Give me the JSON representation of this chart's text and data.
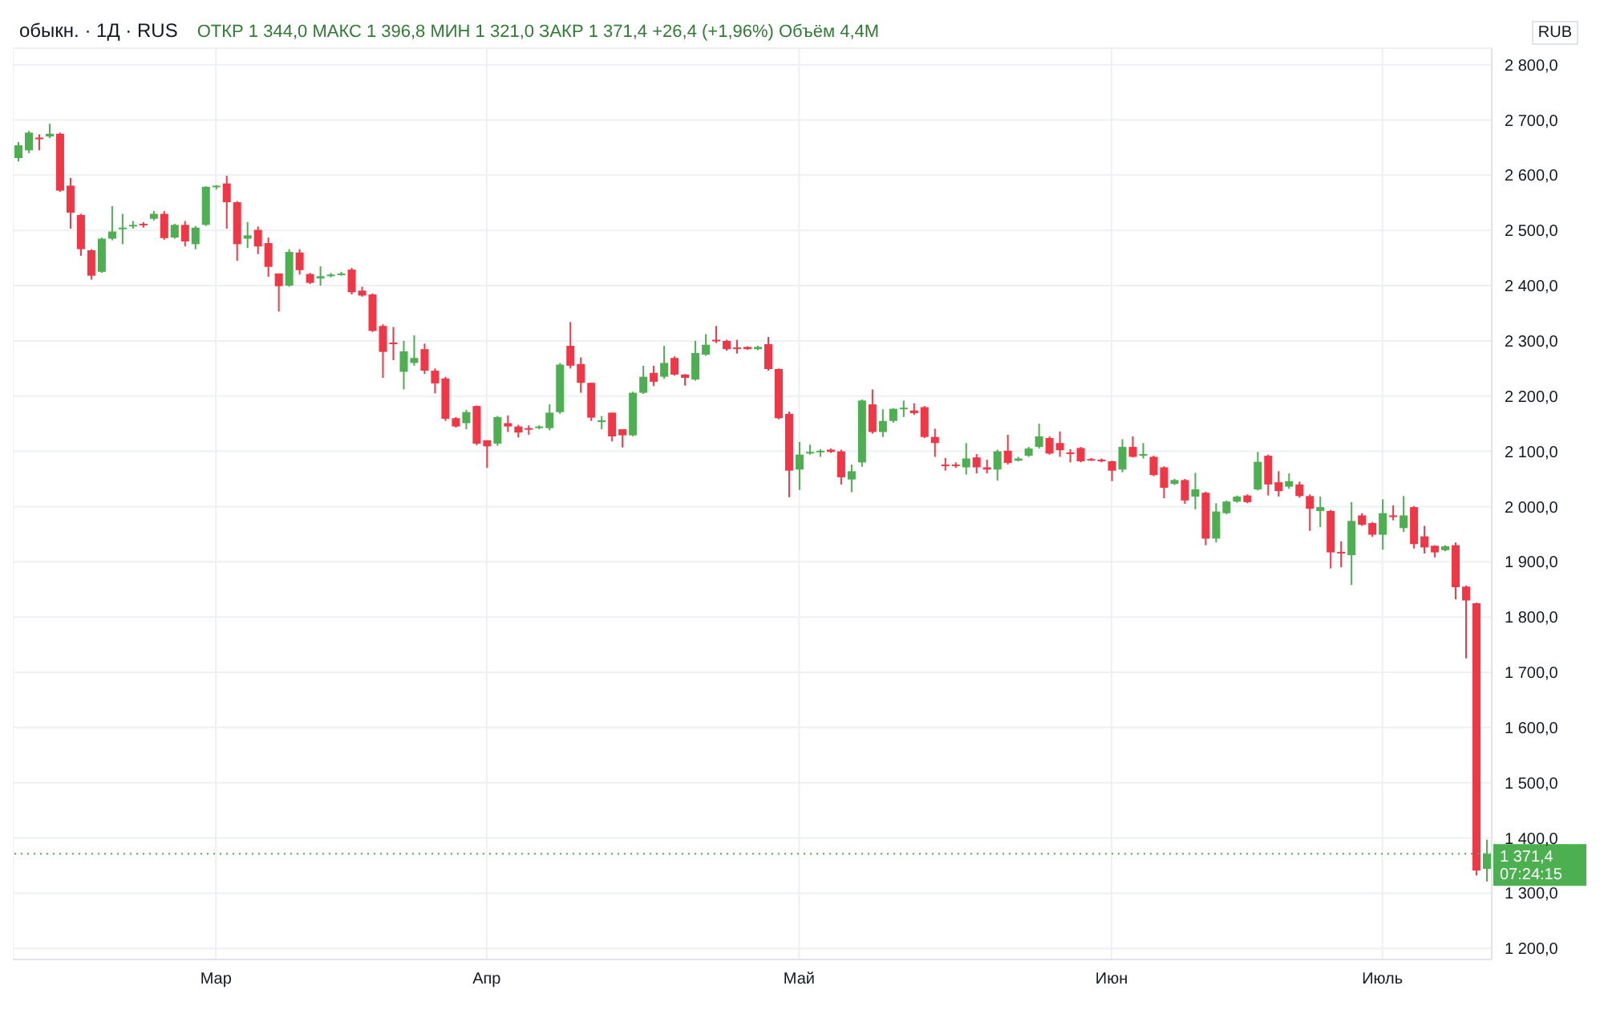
{
  "chart_data": {
    "type": "candlestick",
    "title": "обыкн. · 1Д · RUS",
    "subtitle": "ОТКР 1 344,0  МАКС 1 396,8  МИН 1 321,0  ЗАКР 1 371,4  +26,4 (+1,96%)  Объём 4,4M",
    "annotations": [
      "RUB",
      "07:24:15"
    ],
    "categories": [
      null,
      null,
      null,
      null,
      null,
      null,
      null,
      null,
      null,
      null,
      null,
      null,
      null,
      null,
      null,
      null,
      null,
      null,
      null,
      "Мар",
      null,
      null,
      null,
      null,
      null,
      null,
      null,
      null,
      null,
      null,
      null,
      null,
      null,
      null,
      null,
      null,
      null,
      null,
      null,
      null,
      null,
      null,
      null,
      null,
      null,
      "Апр",
      null,
      null,
      null,
      null,
      null,
      null,
      null,
      null,
      null,
      null,
      null,
      null,
      null,
      null,
      null,
      null,
      null,
      null,
      null,
      null,
      null,
      null,
      null,
      null,
      null,
      null,
      null,
      null,
      null,
      "Май",
      null,
      null,
      null,
      null,
      null,
      null,
      null,
      null,
      null,
      null,
      null,
      null,
      null,
      null,
      null,
      null,
      null,
      null,
      null,
      null,
      null,
      null,
      null,
      null,
      null,
      null,
      null,
      null,
      null,
      "Июн",
      null,
      null,
      null,
      null,
      null,
      null,
      null,
      null,
      null,
      null,
      null,
      null,
      null,
      null,
      null,
      null,
      null,
      null,
      null,
      null,
      null,
      null,
      null,
      null,
      null,
      "Июль",
      null,
      null,
      null,
      null,
      null,
      null,
      null,
      null,
      null,
      null
    ],
    "ohlc": [
      [
        2631,
        2660,
        2625,
        2654
      ],
      [
        2645,
        2680,
        2640,
        2677
      ],
      [
        2668,
        2674,
        2645,
        2665
      ],
      [
        2670,
        2693,
        2667,
        2675
      ],
      [
        2675,
        2677,
        2570,
        2572
      ],
      [
        2581,
        2595,
        2503,
        2532
      ],
      [
        2528,
        2530,
        2454,
        2466
      ],
      [
        2464,
        2466,
        2411,
        2418
      ],
      [
        2425,
        2487,
        2423,
        2485
      ],
      [
        2485,
        2544,
        2482,
        2498
      ],
      [
        2503,
        2530,
        2475,
        2505
      ],
      [
        2508,
        2517,
        2503,
        2510
      ],
      [
        2512,
        2515,
        2505,
        2511
      ],
      [
        2521,
        2535,
        2518,
        2530
      ],
      [
        2530,
        2535,
        2483,
        2486
      ],
      [
        2487,
        2512,
        2485,
        2510
      ],
      [
        2510,
        2517,
        2471,
        2480
      ],
      [
        2475,
        2508,
        2466,
        2505
      ],
      [
        2510,
        2580,
        2508,
        2579
      ],
      [
        2580,
        2582,
        2574,
        2581
      ],
      [
        2585,
        2599,
        2503,
        2551
      ],
      [
        2551,
        2553,
        2445,
        2475
      ],
      [
        2485,
        2515,
        2468,
        2491
      ],
      [
        2501,
        2507,
        2457,
        2471
      ],
      [
        2477,
        2487,
        2416,
        2434
      ],
      [
        2422,
        2422,
        2353,
        2399
      ],
      [
        2400,
        2466,
        2398,
        2461
      ],
      [
        2460,
        2466,
        2420,
        2428
      ],
      [
        2421,
        2423,
        2403,
        2405
      ],
      [
        2413,
        2435,
        2400,
        2417
      ],
      [
        2418,
        2423,
        2415,
        2420
      ],
      [
        2420,
        2425,
        2418,
        2422
      ],
      [
        2429,
        2432,
        2384,
        2388
      ],
      [
        2391,
        2398,
        2380,
        2382
      ],
      [
        2384,
        2386,
        2316,
        2318
      ],
      [
        2327,
        2330,
        2233,
        2280
      ],
      [
        2297,
        2325,
        2265,
        2294
      ],
      [
        2244,
        2300,
        2212,
        2281
      ],
      [
        2260,
        2310,
        2255,
        2269
      ],
      [
        2285,
        2295,
        2240,
        2246
      ],
      [
        2246,
        2250,
        2205,
        2223
      ],
      [
        2232,
        2235,
        2155,
        2159
      ],
      [
        2160,
        2162,
        2143,
        2145
      ],
      [
        2151,
        2175,
        2140,
        2171
      ],
      [
        2182,
        2183,
        2111,
        2114
      ],
      [
        2120,
        2120,
        2070,
        2109
      ],
      [
        2114,
        2164,
        2110,
        2162
      ],
      [
        2151,
        2165,
        2135,
        2145
      ],
      [
        2145,
        2148,
        2125,
        2134
      ],
      [
        2142,
        2147,
        2130,
        2141
      ],
      [
        2143,
        2147,
        2140,
        2145
      ],
      [
        2142,
        2185,
        2138,
        2170
      ],
      [
        2171,
        2260,
        2168,
        2257
      ],
      [
        2291,
        2334,
        2250,
        2255
      ],
      [
        2258,
        2270,
        2206,
        2224
      ],
      [
        2224,
        2224,
        2155,
        2161
      ],
      [
        2153,
        2164,
        2140,
        2156
      ],
      [
        2170,
        2170,
        2118,
        2127
      ],
      [
        2140,
        2140,
        2107,
        2129
      ],
      [
        2129,
        2208,
        2127,
        2206
      ],
      [
        2206,
        2255,
        2204,
        2235
      ],
      [
        2242,
        2255,
        2218,
        2226
      ],
      [
        2235,
        2291,
        2231,
        2260
      ],
      [
        2269,
        2272,
        2237,
        2239
      ],
      [
        2239,
        2240,
        2219,
        2233
      ],
      [
        2230,
        2300,
        2228,
        2278
      ],
      [
        2275,
        2312,
        2273,
        2293
      ],
      [
        2302,
        2327,
        2296,
        2300
      ],
      [
        2300,
        2302,
        2282,
        2285
      ],
      [
        2288,
        2302,
        2277,
        2286
      ],
      [
        2289,
        2290,
        2284,
        2285
      ],
      [
        2285,
        2291,
        2283,
        2289
      ],
      [
        2294,
        2307,
        2246,
        2249
      ],
      [
        2249,
        2250,
        2158,
        2160
      ],
      [
        2168,
        2172,
        2017,
        2065
      ],
      [
        2067,
        2117,
        2030,
        2094
      ],
      [
        2097,
        2112,
        2094,
        2099
      ],
      [
        2100,
        2104,
        2090,
        2101
      ],
      [
        2103,
        2105,
        2097,
        2099
      ],
      [
        2100,
        2103,
        2040,
        2053
      ],
      [
        2049,
        2076,
        2026,
        2064
      ],
      [
        2080,
        2194,
        2072,
        2192
      ],
      [
        2185,
        2212,
        2132,
        2135
      ],
      [
        2135,
        2176,
        2126,
        2155
      ],
      [
        2155,
        2178,
        2152,
        2177
      ],
      [
        2178,
        2192,
        2162,
        2179
      ],
      [
        2174,
        2187,
        2166,
        2169
      ],
      [
        2180,
        2182,
        2124,
        2126
      ],
      [
        2126,
        2141,
        2090,
        2115
      ],
      [
        2076,
        2088,
        2065,
        2075
      ],
      [
        2076,
        2080,
        2070,
        2075
      ],
      [
        2071,
        2115,
        2058,
        2087
      ],
      [
        2089,
        2095,
        2060,
        2071
      ],
      [
        2071,
        2085,
        2060,
        2067
      ],
      [
        2067,
        2103,
        2047,
        2100
      ],
      [
        2101,
        2130,
        2076,
        2079
      ],
      [
        2083,
        2090,
        2082,
        2087
      ],
      [
        2092,
        2108,
        2090,
        2105
      ],
      [
        2108,
        2150,
        2105,
        2127
      ],
      [
        2124,
        2127,
        2094,
        2096
      ],
      [
        2115,
        2136,
        2090,
        2102
      ],
      [
        2098,
        2104,
        2080,
        2097
      ],
      [
        2106,
        2108,
        2080,
        2082
      ],
      [
        2086,
        2088,
        2083,
        2085
      ],
      [
        2085,
        2087,
        2080,
        2082
      ],
      [
        2082,
        2083,
        2046,
        2065
      ],
      [
        2067,
        2122,
        2062,
        2108
      ],
      [
        2108,
        2127,
        2089,
        2090
      ],
      [
        2092,
        2115,
        2087,
        2095
      ],
      [
        2090,
        2092,
        2055,
        2057
      ],
      [
        2071,
        2073,
        2015,
        2034
      ],
      [
        2041,
        2050,
        2039,
        2048
      ],
      [
        2048,
        2050,
        2005,
        2011
      ],
      [
        2018,
        2061,
        1995,
        2031
      ],
      [
        2025,
        2027,
        1930,
        1942
      ],
      [
        1942,
        2006,
        1935,
        1991
      ],
      [
        1988,
        2011,
        1986,
        2009
      ],
      [
        2009,
        2020,
        2007,
        2018
      ],
      [
        2020,
        2022,
        2006,
        2008
      ],
      [
        2031,
        2099,
        2029,
        2081
      ],
      [
        2092,
        2094,
        2020,
        2040
      ],
      [
        2044,
        2064,
        2018,
        2028
      ],
      [
        2036,
        2060,
        2032,
        2046
      ],
      [
        2040,
        2045,
        2016,
        2019
      ],
      [
        2019,
        2022,
        1956,
        1996
      ],
      [
        1992,
        2018,
        1963,
        1999
      ],
      [
        1992,
        1994,
        1888,
        1917
      ],
      [
        1918,
        1937,
        1890,
        1917
      ],
      [
        1912,
        2008,
        1858,
        1974
      ],
      [
        1984,
        1988,
        1965,
        1967
      ],
      [
        1970,
        1972,
        1945,
        1949
      ],
      [
        1949,
        2013,
        1922,
        1988
      ],
      [
        1984,
        2002,
        1975,
        1981
      ],
      [
        1961,
        2019,
        1954,
        1984
      ],
      [
        1999,
        2001,
        1924,
        1932
      ],
      [
        1946,
        1965,
        1915,
        1926
      ],
      [
        1929,
        1930,
        1908,
        1917
      ],
      [
        1921,
        1930,
        1919,
        1928
      ],
      [
        1930,
        1935,
        1832,
        1854
      ],
      [
        1855,
        1857,
        1725,
        1830
      ],
      [
        1825,
        1826,
        1332,
        1341
      ],
      [
        1344,
        1396.8,
        1321,
        1371.4
      ]
    ],
    "colors": [
      "#4caf50",
      "#4caf50",
      "#f23645",
      "#4caf50",
      "#f23645",
      "#f23645",
      "#f23645",
      "#f23645",
      "#4caf50",
      "#4caf50",
      "#4caf50",
      "#4caf50",
      "#f23645",
      "#4caf50",
      "#f23645",
      "#4caf50",
      "#f23645",
      "#4caf50",
      "#4caf50",
      "#4caf50",
      "#f23645",
      "#f23645",
      "#4caf50",
      "#f23645",
      "#f23645",
      "#f23645",
      "#4caf50",
      "#f23645",
      "#f23645",
      "#4caf50",
      "#4caf50",
      "#4caf50",
      "#f23645",
      "#f23645",
      "#f23645",
      "#f23645",
      "#f23645",
      "#4caf50",
      "#4caf50",
      "#f23645",
      "#f23645",
      "#f23645",
      "#f23645",
      "#4caf50",
      "#f23645",
      "#f23645",
      "#4caf50",
      "#f23645",
      "#f23645",
      "#f23645",
      "#4caf50",
      "#4caf50",
      "#4caf50",
      "#f23645",
      "#f23645",
      "#f23645",
      "#4caf50",
      "#f23645",
      "#f23645",
      "#4caf50",
      "#4caf50",
      "#f23645",
      "#4caf50",
      "#f23645",
      "#f23645",
      "#4caf50",
      "#4caf50",
      "#f23645",
      "#f23645",
      "#f23645",
      "#f23645",
      "#4caf50",
      "#f23645",
      "#f23645",
      "#f23645",
      "#4caf50",
      "#4caf50",
      "#4caf50",
      "#f23645",
      "#f23645",
      "#4caf50",
      "#4caf50",
      "#f23645",
      "#4caf50",
      "#4caf50",
      "#4caf50",
      "#f23645",
      "#f23645",
      "#f23645",
      "#f23645",
      "#f23645",
      "#4caf50",
      "#f23645",
      "#f23645",
      "#4caf50",
      "#f23645",
      "#4caf50",
      "#4caf50",
      "#4caf50",
      "#f23645",
      "#f23645",
      "#f23645",
      "#f23645",
      "#f23645",
      "#f23645",
      "#f23645",
      "#4caf50",
      "#f23645",
      "#4caf50",
      "#f23645",
      "#f23645",
      "#4caf50",
      "#f23645",
      "#4caf50",
      "#f23645",
      "#4caf50",
      "#4caf50",
      "#4caf50",
      "#f23645",
      "#4caf50",
      "#f23645",
      "#f23645",
      "#4caf50",
      "#f23645",
      "#f23645",
      "#4caf50",
      "#f23645",
      "#f23645",
      "#4caf50",
      "#f23645",
      "#f23645",
      "#4caf50",
      "#f23645",
      "#4caf50",
      "#f23645",
      "#f23645",
      "#f23645",
      "#4caf50",
      "#f23645",
      "#f23645",
      "#f23645",
      "#4caf50"
    ],
    "ylim": [
      1180,
      2830
    ],
    "yticks": [
      {
        "value": 1200,
        "label": "1 200,0"
      },
      {
        "value": 1300,
        "label": "1 300,0"
      },
      {
        "value": 1400,
        "label": "1 400,0"
      },
      {
        "value": 1500,
        "label": "1 500,0"
      },
      {
        "value": 1600,
        "label": "1 600,0"
      },
      {
        "value": 1700,
        "label": "1 700,0"
      },
      {
        "value": 1800,
        "label": "1 800,0"
      },
      {
        "value": 1900,
        "label": "1 900,0"
      },
      {
        "value": 2000,
        "label": "2 000,0"
      },
      {
        "value": 2100,
        "label": "2 100,0"
      },
      {
        "value": 2200,
        "label": "2 200,0"
      },
      {
        "value": 2300,
        "label": "2 300,0"
      },
      {
        "value": 2400,
        "label": "2 400,0"
      },
      {
        "value": 2500,
        "label": "2 500,0"
      },
      {
        "value": 2600,
        "label": "2 600,0"
      },
      {
        "value": 2700,
        "label": "2 700,0"
      },
      {
        "value": 2800,
        "label": "2 800,0"
      }
    ],
    "ref_lines": [
      {
        "axis": "y",
        "value": 1371.4,
        "label": "1 371,4",
        "color": "#4caf50",
        "line_style": "dotted"
      }
    ],
    "grid": true
  }
}
